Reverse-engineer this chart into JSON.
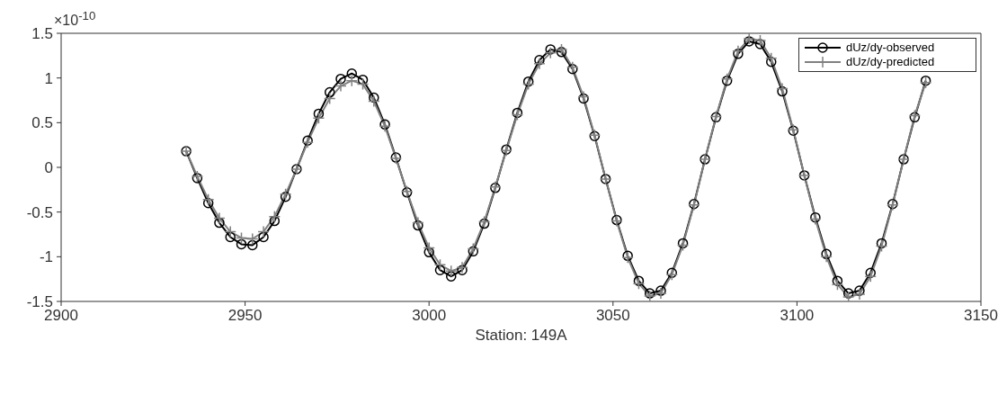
{
  "chart_data": {
    "type": "line",
    "xlabel": "Station: 149A",
    "annotations": [
      "×10$^{-10}$"
    ],
    "x": [
      2934,
      2937,
      2940,
      2943,
      2946,
      2949,
      2952,
      2955,
      2958,
      2961,
      2964,
      2967,
      2970,
      2973,
      2976,
      2979,
      2982,
      2985,
      2988,
      2991,
      2994,
      2997,
      3000,
      3003,
      3006,
      3009,
      3012,
      3015,
      3018,
      3021,
      3024,
      3027,
      3030,
      3033,
      3036,
      3039,
      3042,
      3045,
      3048,
      3051,
      3054,
      3057,
      3060,
      3063,
      3066,
      3069,
      3072,
      3075,
      3078,
      3081,
      3084,
      3087,
      3090,
      3093,
      3096,
      3099,
      3102,
      3105,
      3108,
      3111,
      3114,
      3117,
      3120,
      3123,
      3126,
      3129,
      3132,
      3135
    ],
    "series": [
      {
        "name": "dUz/dy-observed",
        "color": "#000000",
        "marker": "circle",
        "values": [
          0.18,
          -0.12,
          -0.4,
          -0.62,
          -0.78,
          -0.86,
          -0.87,
          -0.78,
          -0.6,
          -0.33,
          -0.02,
          0.3,
          0.6,
          0.84,
          0.99,
          1.05,
          0.98,
          0.78,
          0.48,
          0.11,
          -0.28,
          -0.65,
          -0.95,
          -1.15,
          -1.22,
          -1.15,
          -0.94,
          -0.63,
          -0.23,
          0.2,
          0.61,
          0.96,
          1.2,
          1.32,
          1.29,
          1.1,
          0.77,
          0.35,
          -0.13,
          -0.59,
          -0.99,
          -1.27,
          -1.41,
          -1.38,
          -1.18,
          -0.85,
          -0.41,
          0.09,
          0.56,
          0.97,
          1.27,
          1.41,
          1.38,
          1.18,
          0.85,
          0.41,
          -0.09,
          -0.56,
          -0.97,
          -1.27,
          -1.41,
          -1.38,
          -1.18,
          -0.85,
          -0.41,
          0.09,
          0.56,
          0.97
        ]
      },
      {
        "name": "dUz/dy-predicted",
        "color": "#808080",
        "marker": "cross",
        "values": [
          0.18,
          -0.1,
          -0.36,
          -0.57,
          -0.72,
          -0.79,
          -0.8,
          -0.72,
          -0.55,
          -0.3,
          -0.02,
          0.28,
          0.55,
          0.77,
          0.91,
          0.97,
          0.93,
          0.74,
          0.46,
          0.1,
          -0.27,
          -0.62,
          -0.9,
          -1.09,
          -1.16,
          -1.12,
          -0.91,
          -0.61,
          -0.22,
          0.19,
          0.59,
          0.93,
          1.16,
          1.28,
          1.32,
          1.12,
          0.79,
          0.36,
          -0.13,
          -0.6,
          -1.01,
          -1.3,
          -1.44,
          -1.41,
          -1.2,
          -0.87,
          -0.42,
          0.09,
          0.57,
          0.99,
          1.3,
          1.44,
          1.42,
          1.22,
          0.88,
          0.42,
          -0.09,
          -0.58,
          -1.0,
          -1.31,
          -1.45,
          -1.42,
          -1.22,
          -0.88,
          -0.42,
          0.09,
          0.58,
          0.95
        ]
      }
    ],
    "xlim": [
      2900,
      3150
    ],
    "xticks": [
      2900,
      2950,
      3000,
      3050,
      3100,
      3150
    ],
    "ylim": [
      -1.5,
      1.5
    ],
    "yticks": [
      -1.5,
      -1,
      -0.5,
      0,
      0.5,
      1,
      1.5
    ],
    "grid": false,
    "legend": "top right",
    "line_style": "solid"
  }
}
